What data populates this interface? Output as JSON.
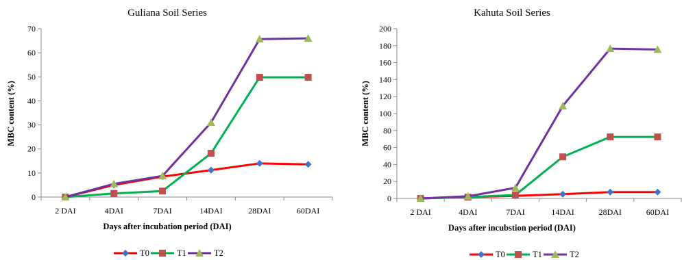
{
  "series_styles": [
    {
      "name": "T0",
      "line_color": "#ff0000",
      "marker": "diamond",
      "marker_color": "#3f74c6"
    },
    {
      "name": "T1",
      "line_color": "#00b050",
      "marker": "square",
      "marker_color": "#c0504d"
    },
    {
      "name": "T2",
      "line_color": "#7030a0",
      "marker": "triangle",
      "marker_color": "#9bbb59"
    }
  ],
  "chart_data": [
    {
      "type": "line",
      "title": "Guliana Soil Series",
      "xlabel": "Days after incubation period (DAI)",
      "ylabel": "MBC content (%)",
      "categories": [
        "2 DAI",
        "4DAI",
        "7DAI",
        "14DAI",
        "28DAI",
        "60DAI"
      ],
      "ylim": [
        0,
        70
      ],
      "yticks": [
        0,
        10,
        20,
        30,
        40,
        50,
        60,
        70
      ],
      "grid": false,
      "legend": "bottom",
      "series": [
        {
          "name": "T0",
          "values": [
            0,
            5,
            8.5,
            11.2,
            14,
            13.6
          ]
        },
        {
          "name": "T1",
          "values": [
            0,
            1.5,
            2.5,
            18.2,
            49.8,
            49.8
          ]
        },
        {
          "name": "T2",
          "values": [
            0,
            5.5,
            8.8,
            31,
            65.7,
            66
          ]
        }
      ]
    },
    {
      "type": "line",
      "title": "Kahuta Soil Series",
      "xlabel": "Days after incubstion period (DAI)",
      "ylabel": "MBC content (%)",
      "categories": [
        "2 DAI",
        "4DAI",
        "7DAI",
        "14DAI",
        "28DAI",
        "60DAI"
      ],
      "ylim": [
        0,
        200
      ],
      "yticks": [
        0,
        20,
        40,
        60,
        80,
        100,
        120,
        140,
        160,
        180,
        200
      ],
      "grid": false,
      "legend": "bottom",
      "series": [
        {
          "name": "T0",
          "values": [
            0,
            1.5,
            3,
            5,
            7.5,
            7.5
          ]
        },
        {
          "name": "T1",
          "values": [
            0,
            1.5,
            4,
            49,
            72.5,
            72.5
          ]
        },
        {
          "name": "T2",
          "values": [
            0,
            2.5,
            12.5,
            109,
            176.5,
            175.5
          ]
        }
      ]
    }
  ]
}
